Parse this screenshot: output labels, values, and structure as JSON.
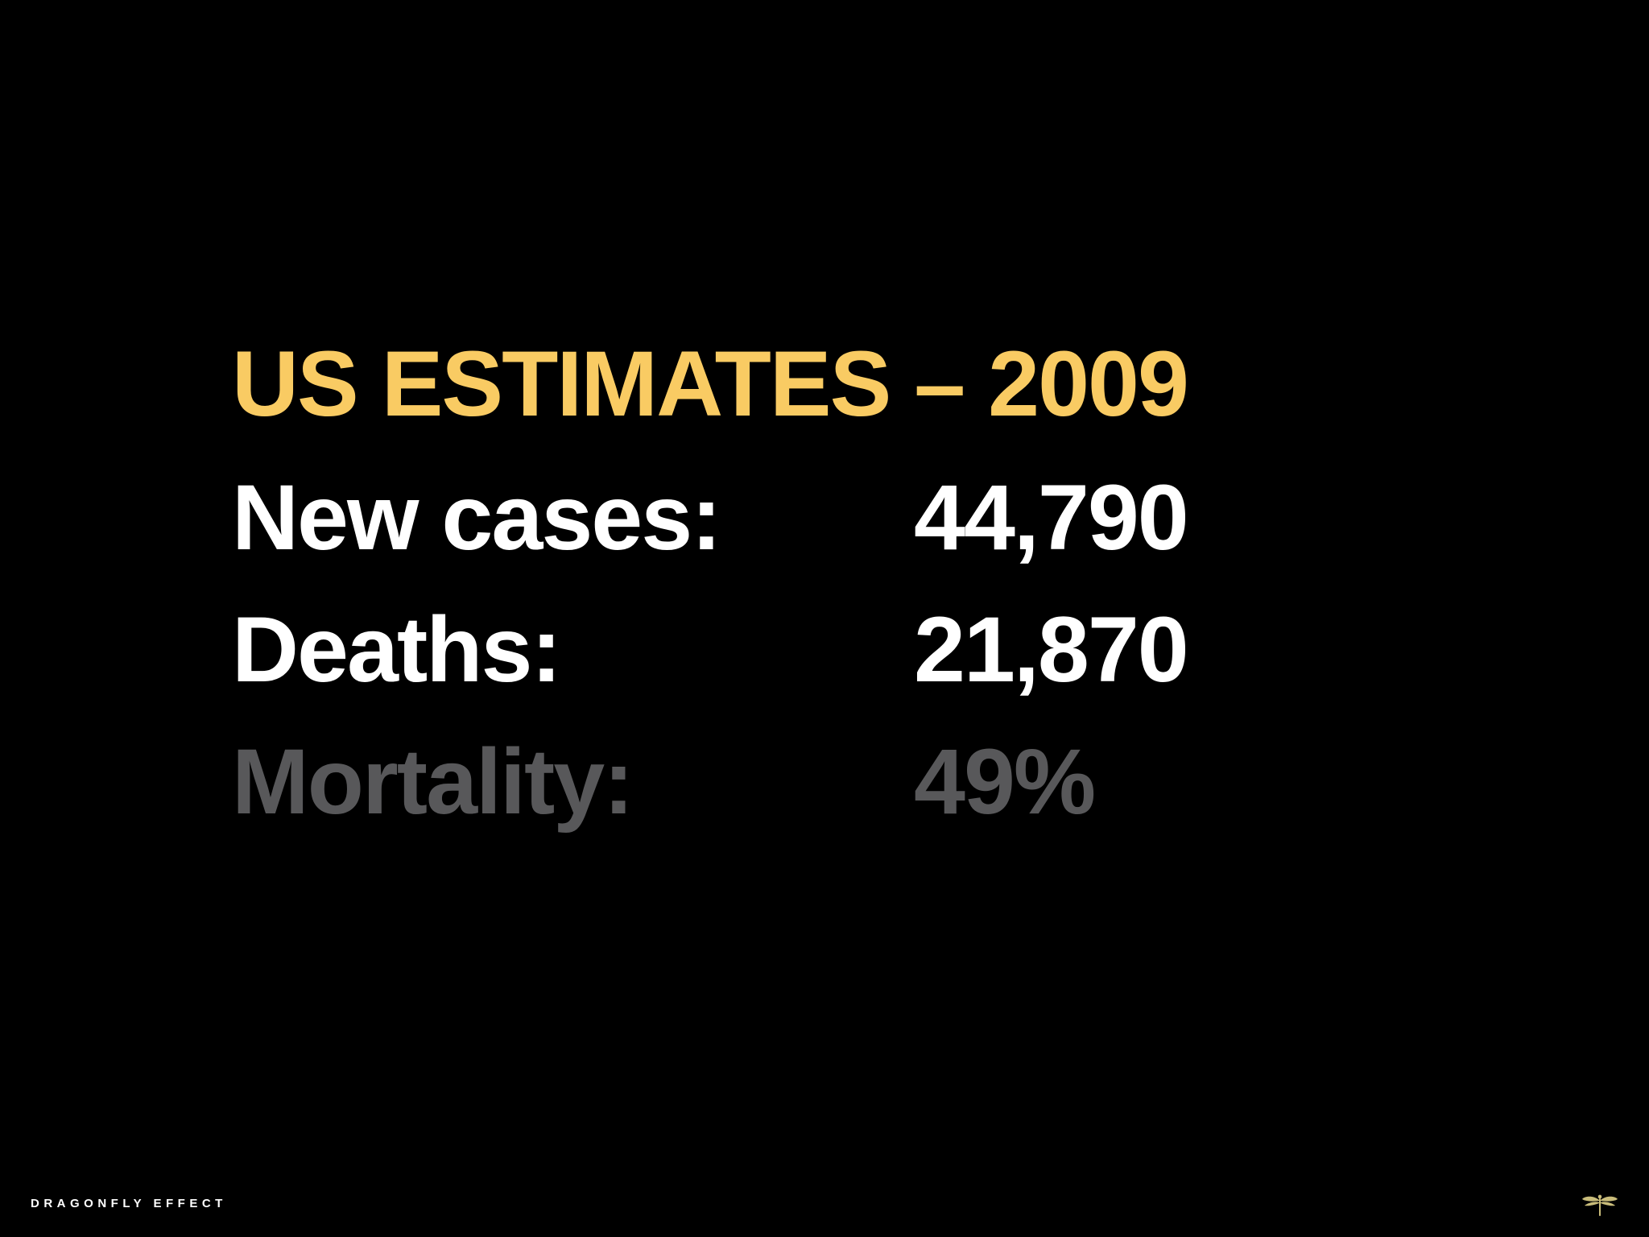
{
  "slide": {
    "title": "US ESTIMATES – 2009",
    "rows": [
      {
        "label": "New cases:",
        "value": "44,790"
      },
      {
        "label": "Deaths:",
        "value": "21,870"
      },
      {
        "label": "Mortality:",
        "value": "49%"
      }
    ]
  },
  "footer": {
    "brand": "DRAGONFLY EFFECT",
    "logo_icon": "dragonfly-icon"
  },
  "colors": {
    "background": "#000000",
    "title": "#F9CB63",
    "primary_text": "#FFFFFF",
    "muted_text": "#58585A",
    "footer_text": "#FFFFFF",
    "logo": "#C9BC7A"
  }
}
